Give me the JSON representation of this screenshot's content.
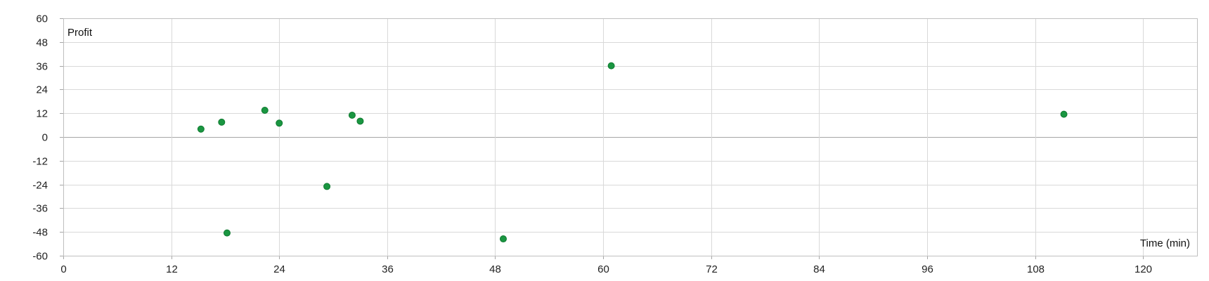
{
  "chart_data": {
    "type": "scatter",
    "xlabel": "Time (min)",
    "ylabel": "Profit",
    "xlim": [
      0,
      126
    ],
    "ylim": [
      -60,
      60
    ],
    "xticks": [
      0,
      12,
      24,
      36,
      48,
      60,
      72,
      84,
      96,
      108,
      120
    ],
    "yticks": [
      60,
      48,
      36,
      24,
      12,
      0,
      -12,
      -24,
      -36,
      -48,
      -60
    ],
    "grid": true,
    "marker_color": "#1a9641",
    "series": [
      {
        "points": [
          {
            "x": 15.3,
            "y": 4
          },
          {
            "x": 17.6,
            "y": 7.5
          },
          {
            "x": 18.2,
            "y": -48.5
          },
          {
            "x": 22.4,
            "y": 13.5
          },
          {
            "x": 24.0,
            "y": 7
          },
          {
            "x": 29.3,
            "y": -25
          },
          {
            "x": 32.1,
            "y": 11
          },
          {
            "x": 33.0,
            "y": 8
          },
          {
            "x": 48.9,
            "y": -51.5
          },
          {
            "x": 60.9,
            "y": 36
          },
          {
            "x": 111.2,
            "y": 11.5
          }
        ]
      }
    ]
  }
}
